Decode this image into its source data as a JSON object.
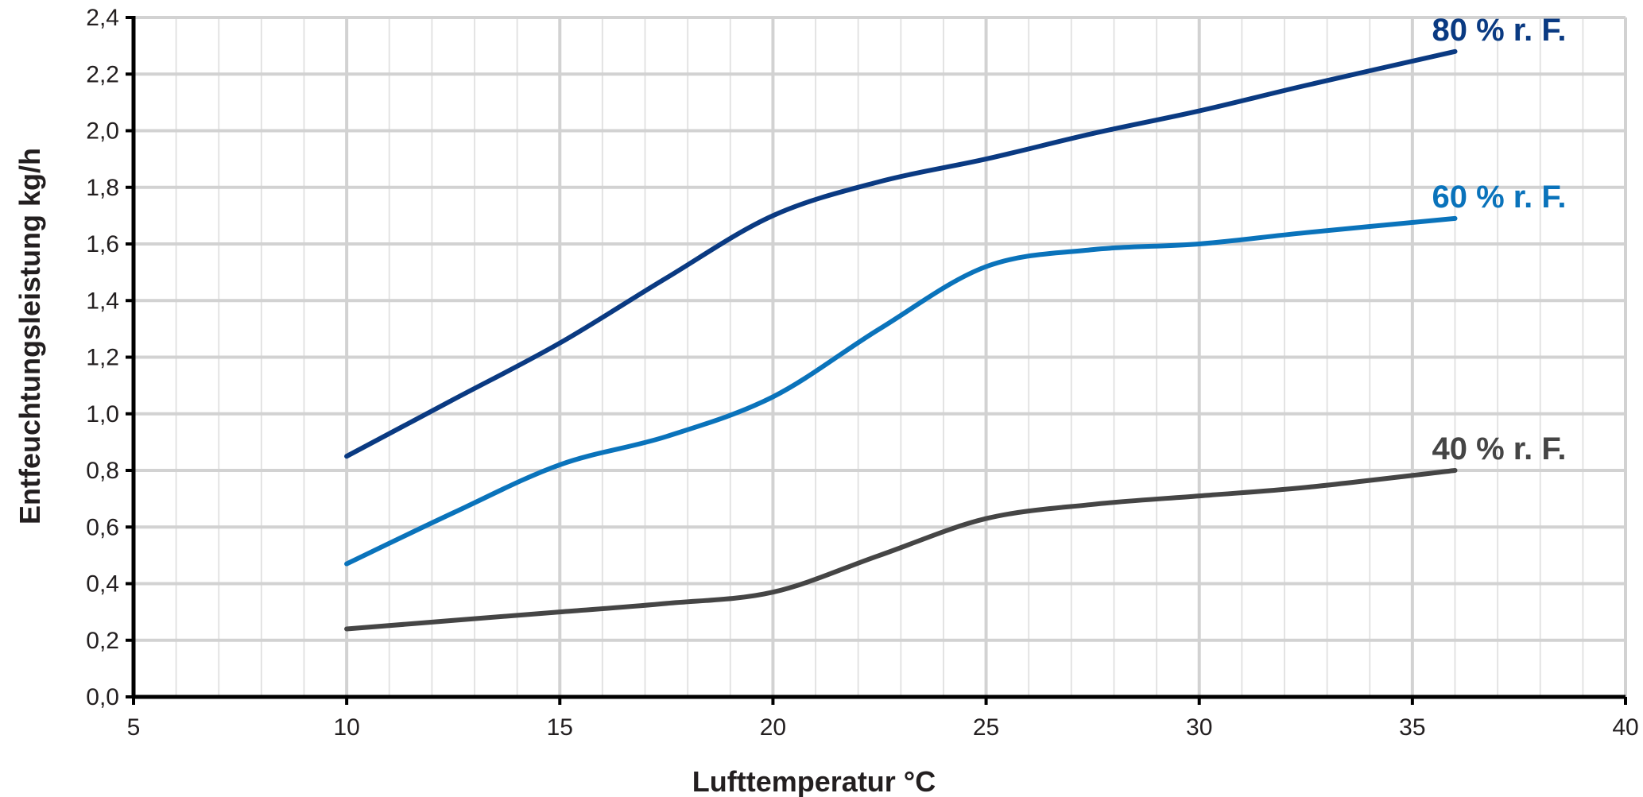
{
  "chart_data": {
    "type": "line",
    "xlabel": "Lufttemperatur °C",
    "ylabel": "Entfeuchtungsleistung kg/h",
    "xlim": [
      5,
      40
    ],
    "ylim": [
      0.0,
      2.4
    ],
    "x_ticks": [
      "5",
      "10",
      "15",
      "20",
      "25",
      "30",
      "35",
      "40"
    ],
    "y_ticks": [
      "0,0",
      "0,2",
      "0,4",
      "0,6",
      "0,8",
      "1,0",
      "1,2",
      "1,4",
      "1,6",
      "1,8",
      "2,0",
      "2,2",
      "2,4"
    ],
    "x_tick_values": [
      5,
      10,
      15,
      20,
      25,
      30,
      35,
      40
    ],
    "y_tick_values": [
      0.0,
      0.2,
      0.4,
      0.6,
      0.8,
      1.0,
      1.2,
      1.4,
      1.6,
      1.8,
      2.0,
      2.2,
      2.4
    ],
    "grid": true,
    "legend": "labels at line ends",
    "series": [
      {
        "name": "80 % r. F.",
        "color": "#0a3a82",
        "x": [
          10,
          12.5,
          15,
          17.5,
          20,
          22.5,
          25,
          27.5,
          30,
          32.5,
          36
        ],
        "y": [
          0.85,
          1.05,
          1.25,
          1.48,
          1.7,
          1.82,
          1.9,
          1.99,
          2.07,
          2.16,
          2.28
        ]
      },
      {
        "name": "60 % r. F.",
        "color": "#0a73bb",
        "x": [
          10,
          12.5,
          15,
          17.5,
          20,
          22.5,
          25,
          27.5,
          30,
          32.5,
          36
        ],
        "y": [
          0.47,
          0.65,
          0.82,
          0.92,
          1.06,
          1.3,
          1.52,
          1.58,
          1.6,
          1.64,
          1.69
        ]
      },
      {
        "name": "40 % r. F.",
        "color": "#454545",
        "x": [
          10,
          12.5,
          15,
          17.5,
          20,
          22.5,
          25,
          27.5,
          30,
          32.5,
          36
        ],
        "y": [
          0.24,
          0.27,
          0.3,
          0.33,
          0.37,
          0.5,
          0.63,
          0.68,
          0.71,
          0.74,
          0.8
        ]
      }
    ]
  }
}
